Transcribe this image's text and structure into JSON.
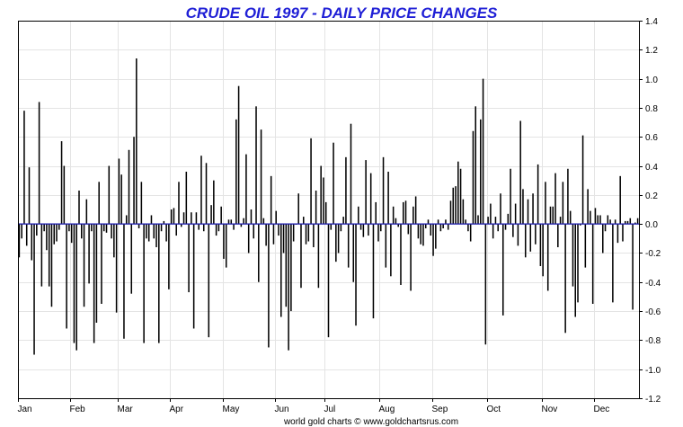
{
  "chart_data": {
    "type": "bar",
    "title": "CRUDE OIL 1997 - DAILY PRICE CHANGES",
    "credit": "world gold charts © www.goldchartsrus.com",
    "xlabel": "",
    "ylabel": "",
    "ylim": [
      -1.2,
      1.4
    ],
    "y_ticks": [
      "1.4",
      "1.2",
      "1.0",
      "0.8",
      "0.6",
      "0.4",
      "0.2",
      "0.0",
      "-0.2",
      "-0.4",
      "-0.6",
      "-0.8",
      "-1.0",
      "-1.2"
    ],
    "y_axis_side": "right",
    "x_ticks": [
      "Jan",
      "Feb",
      "Mar",
      "Apr",
      "May",
      "Jun",
      "Jul",
      "Aug",
      "Sep",
      "Oct",
      "Nov",
      "Dec"
    ],
    "month_start_index": [
      0,
      21,
      40,
      61,
      82,
      103,
      123,
      145,
      166,
      188,
      210,
      231
    ],
    "grid": true,
    "zero_line_color": "#1a1ab0",
    "bar_color": "#000000",
    "title_color": "#1f1fd6",
    "values": [
      -0.23,
      -0.1,
      0.78,
      -0.15,
      0.39,
      -0.25,
      -0.9,
      -0.08,
      0.84,
      -0.43,
      -0.05,
      -0.18,
      -0.43,
      -0.57,
      -0.14,
      -0.12,
      -0.04,
      0.57,
      0.4,
      -0.72,
      -0.05,
      -0.13,
      -0.82,
      -0.87,
      0.23,
      -0.1,
      -0.57,
      0.17,
      -0.41,
      -0.05,
      -0.82,
      -0.68,
      0.29,
      -0.55,
      -0.05,
      -0.06,
      0.4,
      -0.1,
      -0.23,
      -0.61,
      0.45,
      0.34,
      -0.79,
      0.06,
      0.51,
      -0.48,
      0.6,
      1.14,
      -0.03,
      0.29,
      -0.82,
      -0.1,
      -0.12,
      0.06,
      -0.1,
      -0.16,
      -0.82,
      -0.05,
      0.02,
      -0.12,
      -0.45,
      0.1,
      0.11,
      -0.08,
      0.29,
      -0.02,
      0.08,
      0.36,
      -0.47,
      0.08,
      -0.72,
      0.08,
      -0.04,
      0.47,
      -0.05,
      0.42,
      -0.78,
      0.13,
      0.3,
      -0.08,
      -0.05,
      0.12,
      -0.24,
      -0.3,
      0.03,
      0.03,
      -0.04,
      0.72,
      0.95,
      -0.02,
      0.04,
      0.48,
      -0.2,
      0.1,
      -0.1,
      0.81,
      -0.4,
      0.65,
      0.04,
      -0.15,
      -0.85,
      0.33,
      -0.14,
      0.09,
      -0.08,
      -0.64,
      -0.2,
      -0.57,
      -0.87,
      -0.6,
      -0.12,
      0.0,
      0.21,
      -0.44,
      0.05,
      -0.14,
      -0.12,
      0.59,
      -0.16,
      0.23,
      -0.44,
      0.4,
      0.32,
      0.15,
      -0.78,
      -0.04,
      0.56,
      -0.26,
      -0.2,
      -0.05,
      0.05,
      0.46,
      -0.3,
      0.69,
      -0.4,
      -0.7,
      0.12,
      -0.04,
      -0.09,
      0.44,
      -0.08,
      0.35,
      -0.65,
      0.15,
      -0.12,
      -0.05,
      0.46,
      -0.3,
      0.36,
      -0.36,
      0.12,
      0.04,
      -0.02,
      -0.42,
      0.15,
      0.16,
      -0.07,
      -0.46,
      0.12,
      0.19,
      -0.1,
      -0.14,
      -0.15,
      -0.03,
      0.03,
      -0.08,
      -0.22,
      -0.17,
      0.03,
      -0.05,
      -0.03,
      0.03,
      -0.04,
      0.16,
      0.25,
      0.26,
      0.43,
      0.38,
      0.17,
      0.03,
      -0.05,
      -0.12,
      0.64,
      0.81,
      0.06,
      0.72,
      1.0,
      -0.83,
      0.05,
      0.14,
      -0.1,
      0.05,
      -0.05,
      0.21,
      -0.63,
      -0.04,
      0.07,
      0.38,
      -0.09,
      0.14,
      -0.15,
      0.71,
      0.24,
      -0.23,
      0.17,
      -0.19,
      0.21,
      -0.14,
      0.41,
      -0.29,
      -0.36,
      0.29,
      -0.46,
      0.12,
      0.12,
      0.35,
      -0.16,
      0.05,
      0.29,
      -0.75,
      0.38,
      0.09,
      -0.43,
      -0.64,
      -0.54,
      -0.01,
      0.61,
      -0.3,
      0.24,
      0.09,
      -0.55,
      0.11,
      0.06,
      0.06,
      -0.2,
      -0.05,
      0.06,
      0.03,
      -0.54,
      0.03,
      -0.13,
      0.33,
      -0.12,
      0.02,
      0.02,
      0.04,
      -0.59,
      0.01,
      0.04
    ]
  }
}
